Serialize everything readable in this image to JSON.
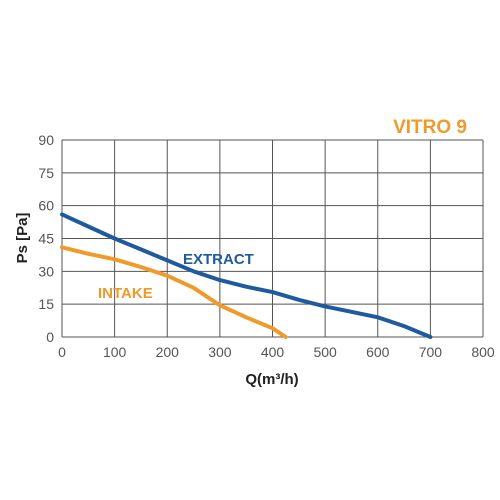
{
  "chart_data": {
    "type": "line",
    "title": "VITRO 9",
    "xlabel": "Q(m³/h)",
    "ylabel": "Ps [Pa]",
    "xlim": [
      0,
      800
    ],
    "ylim": [
      0,
      90
    ],
    "x_ticks": [
      "0",
      "100",
      "200",
      "300",
      "400",
      "500",
      "600",
      "700",
      "800"
    ],
    "y_ticks": [
      "0",
      "15",
      "30",
      "45",
      "60",
      "75",
      "90"
    ],
    "grid": true,
    "series": [
      {
        "name": "EXTRACT",
        "color": "#1f5a9e",
        "points": [
          [
            0,
            56
          ],
          [
            50,
            50.5
          ],
          [
            100,
            45
          ],
          [
            150,
            40
          ],
          [
            200,
            35
          ],
          [
            250,
            30
          ],
          [
            300,
            26
          ],
          [
            350,
            23
          ],
          [
            400,
            20.5
          ],
          [
            450,
            17
          ],
          [
            500,
            14
          ],
          [
            550,
            11.5
          ],
          [
            600,
            9
          ],
          [
            650,
            5
          ],
          [
            700,
            0
          ]
        ]
      },
      {
        "name": "INTAKE",
        "color": "#ef9a2a",
        "points": [
          [
            0,
            41
          ],
          [
            50,
            38
          ],
          [
            100,
            35.5
          ],
          [
            150,
            32
          ],
          [
            200,
            28
          ],
          [
            250,
            22.5
          ],
          [
            300,
            14.5
          ],
          [
            350,
            9
          ],
          [
            400,
            4
          ],
          [
            425,
            0
          ]
        ]
      }
    ]
  }
}
